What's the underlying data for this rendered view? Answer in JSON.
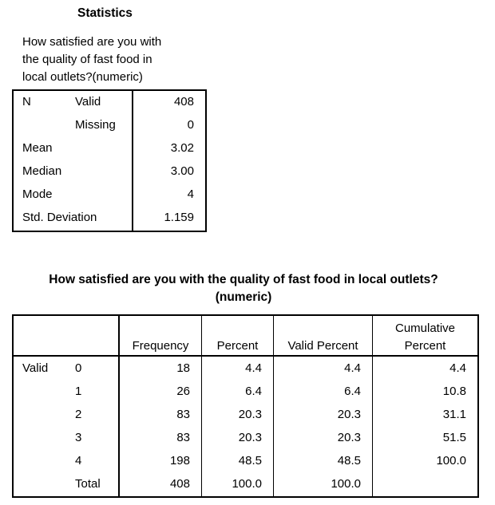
{
  "stats": {
    "title": "Statistics",
    "caption": "How satisfied are you with the quality of fast food in local outlets?(numeric)",
    "caption_lines": [
      "How satisfied are you with",
      "the quality of fast food in",
      "local outlets?(numeric)"
    ],
    "rows": [
      {
        "label": "N",
        "sublabel": "Valid",
        "value": "408"
      },
      {
        "label": "",
        "sublabel": "Missing",
        "value": "0"
      },
      {
        "label": "Mean",
        "sublabel": "",
        "value": "3.02"
      },
      {
        "label": "Median",
        "sublabel": "",
        "value": "3.00"
      },
      {
        "label": "Mode",
        "sublabel": "",
        "value": "4"
      },
      {
        "label": "Std. Deviation",
        "sublabel": "",
        "value": "1.159"
      }
    ]
  },
  "freq": {
    "title_line1": "How satisfied are you with the quality of fast food in local outlets?",
    "title_line2": "(numeric)",
    "headers": {
      "frequency": "Frequency",
      "percent": "Percent",
      "valid_percent": "Valid Percent",
      "cumulative_line1": "Cumulative",
      "cumulative_line2": "Percent"
    },
    "group_label": "Valid",
    "rows": [
      {
        "category": "0",
        "frequency": "18",
        "percent": "4.4",
        "valid_percent": "4.4",
        "cumulative": "4.4"
      },
      {
        "category": "1",
        "frequency": "26",
        "percent": "6.4",
        "valid_percent": "6.4",
        "cumulative": "10.8"
      },
      {
        "category": "2",
        "frequency": "83",
        "percent": "20.3",
        "valid_percent": "20.3",
        "cumulative": "31.1"
      },
      {
        "category": "3",
        "frequency": "83",
        "percent": "20.3",
        "valid_percent": "20.3",
        "cumulative": "51.5"
      },
      {
        "category": "4",
        "frequency": "198",
        "percent": "48.5",
        "valid_percent": "48.5",
        "cumulative": "100.0"
      },
      {
        "category": "Total",
        "frequency": "408",
        "percent": "100.0",
        "valid_percent": "100.0",
        "cumulative": ""
      }
    ]
  }
}
